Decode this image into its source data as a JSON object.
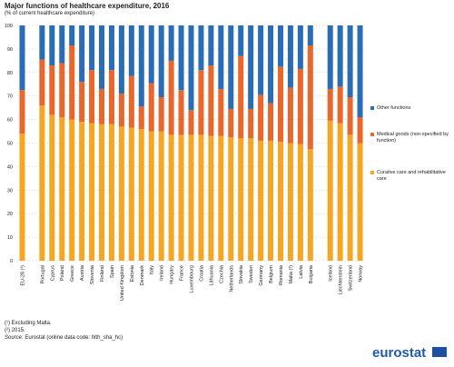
{
  "chart_data": {
    "type": "stacked-bar",
    "title": "Major functions of healthcare expenditure, 2016",
    "subtitle": "(% of current healthcare expenditure)",
    "categories": [
      "EU-28 (¹)",
      null,
      "Portugal",
      "Cyprus",
      "Poland",
      "Greece",
      "Austria",
      "Slovenia",
      "Finland",
      "Spain",
      "United Kingdom",
      "Estonia",
      "Denmark",
      "Italy",
      "Ireland",
      "Hungary",
      "France",
      "Luxembourg",
      "Croatia",
      "Lithuania",
      "Czechia",
      "Netherlands",
      "Slovakia",
      "Sweden",
      "Germany",
      "Belgium",
      "Romania",
      "Malta (²)",
      "Latvia",
      "Bulgaria",
      null,
      "Iceland",
      "Liechtenstein",
      "Switzerland",
      "Norway"
    ],
    "series": [
      {
        "name": "Curative care and rehabilitative care",
        "color": "#f5a623",
        "values": [
          54,
          null,
          66,
          62,
          61,
          60,
          59,
          58.5,
          58,
          58,
          57,
          56.5,
          56,
          55,
          55,
          53.5,
          53.5,
          53.5,
          53.5,
          53,
          53,
          52.5,
          52,
          52,
          51,
          51,
          50.5,
          50,
          49.5,
          47.5,
          null,
          59.5,
          58.5,
          53.5,
          50
        ]
      },
      {
        "name": "Medical goods (non-specified by function)",
        "color": "#e8672c",
        "values": [
          18.5,
          null,
          19.5,
          21,
          23,
          31.5,
          17,
          22.5,
          15,
          23,
          14,
          22,
          9.5,
          20.5,
          14.5,
          31.5,
          19,
          10.5,
          27.5,
          30,
          20,
          12,
          35,
          12.5,
          19.5,
          16,
          32,
          23.5,
          32,
          44,
          null,
          13.5,
          15.5,
          16,
          11
        ]
      },
      {
        "name": "Other functions",
        "color": "#2a6cb5",
        "values": [
          27.5,
          null,
          14.5,
          17,
          16,
          8.5,
          24,
          19,
          27,
          19,
          29,
          21.5,
          34.5,
          24.5,
          30.5,
          15,
          27.5,
          36,
          19,
          17,
          27,
          35.5,
          13,
          35.5,
          29.5,
          33,
          17.5,
          26.5,
          18.5,
          8.5,
          null,
          27,
          26,
          30.5,
          39
        ]
      }
    ],
    "ylim": [
      0,
      100
    ],
    "yticks": [
      0,
      10,
      20,
      30,
      40,
      50,
      60,
      70,
      80,
      90,
      100
    ],
    "grid": true,
    "legend": "right",
    "footnotes": [
      "(¹) Excluding Malta.",
      "(²) 2015."
    ],
    "source_label": "Source:",
    "source": "Eurostat (online data code: hlth_sha_hc)",
    "logo": "eurostat"
  }
}
